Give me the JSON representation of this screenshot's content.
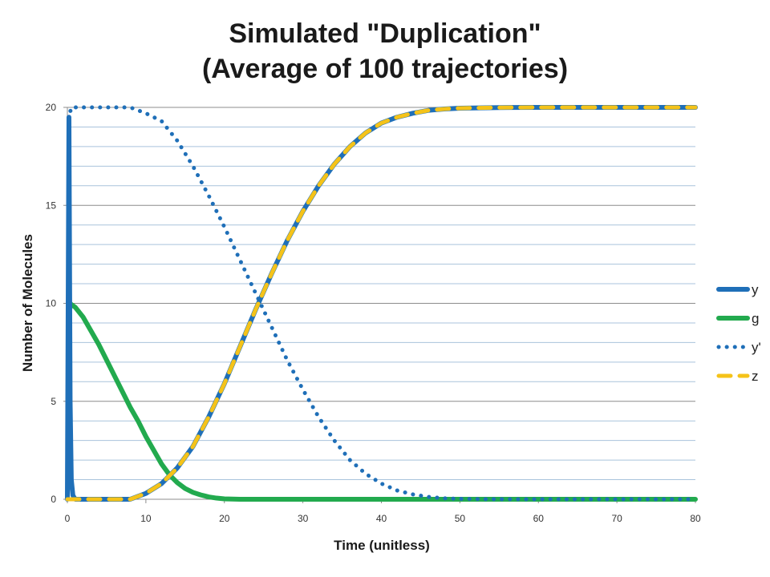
{
  "chart_data": {
    "type": "line",
    "title": "Simulated \"Duplication\"",
    "subtitle": "(Average of 100 trajectories)",
    "xlabel": "Time (unitless)",
    "ylabel": "Number of Molecules",
    "xlim": [
      0,
      80
    ],
    "ylim": [
      0,
      20
    ],
    "x_ticks": [
      "0",
      "10",
      "20",
      "30",
      "40",
      "50",
      "60",
      "70",
      "80"
    ],
    "y_ticks": [
      "0",
      "5",
      "10",
      "15",
      "20"
    ],
    "grid": true,
    "legend_position": "right",
    "series": [
      {
        "name": "y",
        "color": "#1f6fb8",
        "style": "solid",
        "points": [
          [
            0,
            0
          ],
          [
            0.2,
            19.5
          ],
          [
            0.35,
            5
          ],
          [
            0.5,
            1
          ],
          [
            0.7,
            0.2
          ],
          [
            1,
            0
          ],
          [
            8,
            0
          ],
          [
            10,
            0.3
          ],
          [
            12,
            0.8
          ],
          [
            14,
            1.6
          ],
          [
            16,
            2.7
          ],
          [
            18,
            4.2
          ],
          [
            20,
            5.9
          ],
          [
            22,
            7.8
          ],
          [
            24,
            9.7
          ],
          [
            26,
            11.5
          ],
          [
            28,
            13.2
          ],
          [
            30,
            14.7
          ],
          [
            32,
            16
          ],
          [
            34,
            17.1
          ],
          [
            36,
            18
          ],
          [
            38,
            18.7
          ],
          [
            40,
            19.2
          ],
          [
            42,
            19.5
          ],
          [
            44,
            19.7
          ],
          [
            46,
            19.85
          ],
          [
            48,
            19.92
          ],
          [
            50,
            19.96
          ],
          [
            55,
            19.99
          ],
          [
            60,
            20
          ],
          [
            70,
            20
          ],
          [
            80,
            20
          ]
        ]
      },
      {
        "name": "g",
        "color": "#22aa4e",
        "style": "solid",
        "points": [
          [
            0.3,
            10
          ],
          [
            1,
            9.8
          ],
          [
            2,
            9.3
          ],
          [
            3,
            8.6
          ],
          [
            4,
            7.9
          ],
          [
            5,
            7.1
          ],
          [
            6,
            6.3
          ],
          [
            7,
            5.5
          ],
          [
            8,
            4.7
          ],
          [
            9,
            4
          ],
          [
            10,
            3.2
          ],
          [
            11,
            2.5
          ],
          [
            12,
            1.8
          ],
          [
            13,
            1.25
          ],
          [
            14,
            0.85
          ],
          [
            15,
            0.55
          ],
          [
            16,
            0.35
          ],
          [
            17,
            0.22
          ],
          [
            18,
            0.12
          ],
          [
            19,
            0.06
          ],
          [
            20,
            0.02
          ],
          [
            22,
            0
          ],
          [
            30,
            0
          ],
          [
            40,
            0
          ],
          [
            50,
            0
          ],
          [
            60,
            0
          ],
          [
            70,
            0
          ],
          [
            80,
            0
          ]
        ]
      },
      {
        "name": "y'",
        "color": "#1f6fb8",
        "style": "dotted",
        "points": [
          [
            0,
            0
          ],
          [
            0.2,
            19.5
          ],
          [
            0.5,
            20
          ],
          [
            2,
            20
          ],
          [
            6,
            20
          ],
          [
            8,
            20
          ],
          [
            10,
            19.7
          ],
          [
            12,
            19.3
          ],
          [
            14,
            18.3
          ],
          [
            16,
            17
          ],
          [
            18,
            15.5
          ],
          [
            20,
            13.9
          ],
          [
            22,
            12.2
          ],
          [
            24,
            10.5
          ],
          [
            26,
            8.8
          ],
          [
            28,
            7.1
          ],
          [
            30,
            5.6
          ],
          [
            32,
            4.2
          ],
          [
            34,
            3
          ],
          [
            36,
            2
          ],
          [
            38,
            1.3
          ],
          [
            40,
            0.8
          ],
          [
            42,
            0.45
          ],
          [
            44,
            0.25
          ],
          [
            46,
            0.12
          ],
          [
            48,
            0.05
          ],
          [
            50,
            0.02
          ],
          [
            55,
            0
          ],
          [
            60,
            0
          ],
          [
            70,
            0
          ],
          [
            80,
            0
          ]
        ]
      },
      {
        "name": "z",
        "color": "#f5c319",
        "style": "dashed",
        "points": [
          [
            0,
            0
          ],
          [
            8,
            0
          ],
          [
            10,
            0.3
          ],
          [
            12,
            0.8
          ],
          [
            14,
            1.6
          ],
          [
            16,
            2.7
          ],
          [
            18,
            4.2
          ],
          [
            20,
            5.9
          ],
          [
            22,
            7.8
          ],
          [
            24,
            9.7
          ],
          [
            26,
            11.5
          ],
          [
            28,
            13.2
          ],
          [
            30,
            14.7
          ],
          [
            32,
            16
          ],
          [
            34,
            17.1
          ],
          [
            36,
            18
          ],
          [
            38,
            18.7
          ],
          [
            40,
            19.2
          ],
          [
            42,
            19.5
          ],
          [
            44,
            19.7
          ],
          [
            46,
            19.85
          ],
          [
            48,
            19.92
          ],
          [
            50,
            19.96
          ],
          [
            55,
            19.99
          ],
          [
            60,
            20
          ],
          [
            70,
            20
          ],
          [
            80,
            20
          ]
        ]
      }
    ]
  }
}
